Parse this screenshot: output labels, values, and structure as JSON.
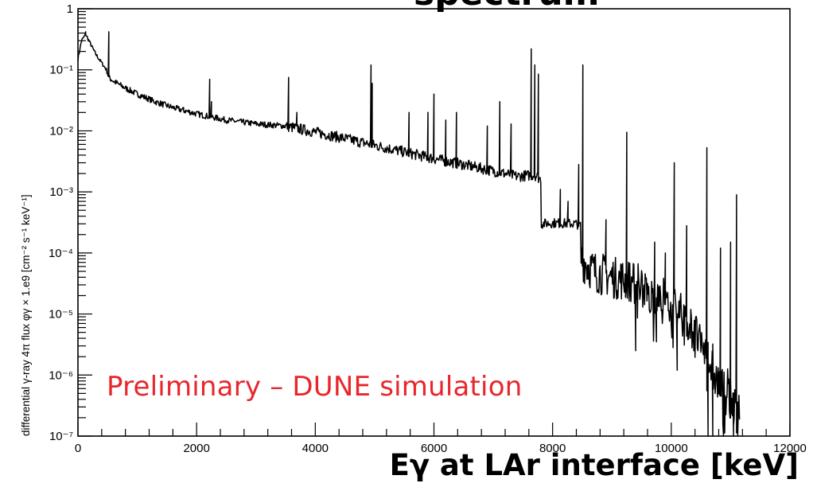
{
  "chart_data": {
    "type": "line",
    "title": "",
    "xlabel": "Eγ at LAr interface [keV]",
    "ylabel": "differential γ-ray 4π flux φγ × 1.e9  [cm⁻² s⁻¹ keV⁻¹]",
    "xlim": [
      0,
      12000
    ],
    "ylim": [
      1e-07,
      1
    ],
    "y_scale": "log",
    "grid": false,
    "x_ticks": [
      "0",
      "2000",
      "4000",
      "6000",
      "8000",
      "10000",
      "12000"
    ],
    "y_ticks": [
      "1",
      "10⁻¹",
      "10⁻²",
      "10⁻³",
      "10⁻⁴",
      "10⁻⁵",
      "10⁻⁶",
      "10⁻⁷"
    ],
    "annotation": "Preliminary – DUNE simulation",
    "series": [
      {
        "line_color": "#000000",
        "continuum": [
          [
            0,
            0.15
          ],
          [
            60,
            0.3
          ],
          [
            130,
            0.38
          ],
          [
            200,
            0.28
          ],
          [
            300,
            0.18
          ],
          [
            400,
            0.13
          ],
          [
            480,
            0.1
          ],
          [
            520,
            0.075
          ],
          [
            600,
            0.065
          ],
          [
            800,
            0.05
          ],
          [
            1000,
            0.04
          ],
          [
            1300,
            0.03
          ],
          [
            1600,
            0.024
          ],
          [
            2000,
            0.019
          ],
          [
            2500,
            0.015
          ],
          [
            3000,
            0.013
          ],
          [
            3500,
            0.012
          ],
          [
            4000,
            0.0095
          ],
          [
            4500,
            0.0075
          ],
          [
            5000,
            0.0058
          ],
          [
            5500,
            0.0045
          ],
          [
            6000,
            0.0035
          ],
          [
            6500,
            0.0028
          ],
          [
            7000,
            0.0022
          ],
          [
            7400,
            0.0018
          ],
          [
            7700,
            0.0019
          ],
          [
            7800,
            0.0016
          ],
          [
            7810,
            0.0003
          ],
          [
            8000,
            0.00031
          ],
          [
            8400,
            0.0003
          ],
          [
            8470,
            0.00028
          ],
          [
            8480,
            8e-05
          ],
          [
            8700,
            5e-05
          ],
          [
            9000,
            4e-05
          ],
          [
            9300,
            3.5e-05
          ],
          [
            9500,
            2.5e-05
          ],
          [
            9800,
            1.5e-05
          ],
          [
            10100,
            1.2e-05
          ],
          [
            10400,
            5e-06
          ],
          [
            10600,
            2e-06
          ],
          [
            10800,
            7e-07
          ],
          [
            11000,
            4e-07
          ],
          [
            11150,
            2e-07
          ]
        ],
        "peaks": [
          [
            130,
            0.42
          ],
          [
            520,
            0.42
          ],
          [
            1780,
            0.022
          ],
          [
            2220,
            0.07
          ],
          [
            2250,
            0.03
          ],
          [
            3550,
            0.075
          ],
          [
            3690,
            0.02
          ],
          [
            4940,
            0.12
          ],
          [
            4960,
            0.06
          ],
          [
            5580,
            0.02
          ],
          [
            5900,
            0.02
          ],
          [
            6000,
            0.04
          ],
          [
            6200,
            0.015
          ],
          [
            6380,
            0.02
          ],
          [
            6900,
            0.012
          ],
          [
            7110,
            0.03
          ],
          [
            7300,
            0.013
          ],
          [
            7640,
            0.22
          ],
          [
            7700,
            0.12
          ],
          [
            7760,
            0.085
          ],
          [
            8130,
            0.0011
          ],
          [
            8260,
            0.0007
          ],
          [
            8440,
            0.0028
          ],
          [
            8510,
            0.12
          ],
          [
            8900,
            0.00035
          ],
          [
            9250,
            0.0095
          ],
          [
            9720,
            0.00015
          ],
          [
            9900,
            0.0001
          ],
          [
            10050,
            0.003
          ],
          [
            10260,
            0.00028
          ],
          [
            10600,
            0.0053
          ],
          [
            10830,
            0.00012
          ],
          [
            11000,
            0.00015
          ],
          [
            11100,
            0.0009
          ]
        ],
        "dips": [
          [
            9400,
            2.5e-06
          ],
          [
            9750,
            3.5e-06
          ],
          [
            10100,
            1.2e-06
          ],
          [
            10380,
            2.5e-06
          ],
          [
            10620,
            1e-07
          ],
          [
            10700,
            1e-07
          ],
          [
            10880,
            1e-07
          ],
          [
            11050,
            1e-07
          ],
          [
            11120,
            1e-07
          ]
        ]
      }
    ]
  }
}
